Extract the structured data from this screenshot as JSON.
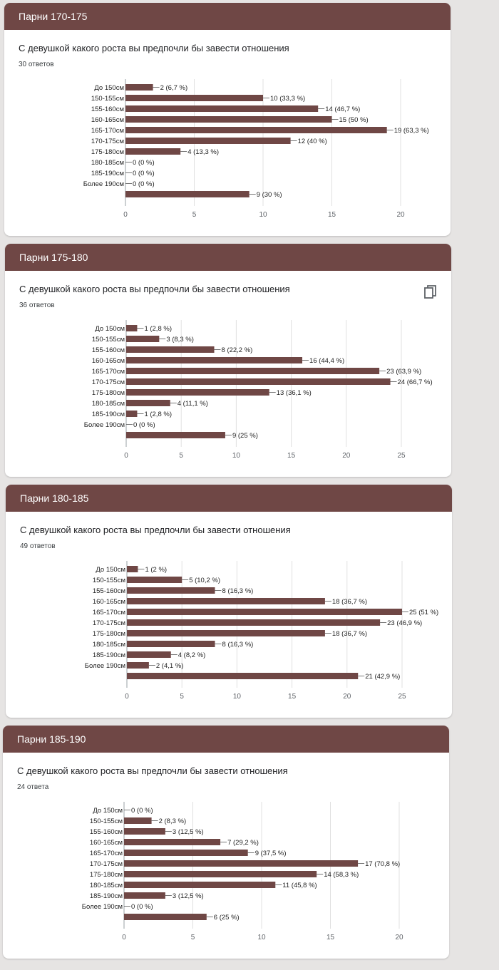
{
  "colors": {
    "header": "#6f4745",
    "bar": "#6f4745",
    "grid": "#e0e0e0",
    "axis": "#5f6368"
  },
  "charts": [
    {
      "header": "Парни 170-175",
      "question": "С девушкой какого роста вы предпочли бы завести отношения",
      "responses": "30 ответов"
    },
    {
      "header": "Парни 175-180",
      "question": "С девушкой какого роста вы предпочли бы завести отношения",
      "responses": "36 ответов",
      "copy_icon": "copy-icon"
    },
    {
      "header": "Парни 180-185",
      "question": "С девушкой какого роста вы предпочли бы завести отношения",
      "responses": "49 ответов"
    },
    {
      "header": "Парни 185-190",
      "question": "С девушкой какого роста вы предпочли бы завести отношения",
      "responses": "24 ответа"
    }
  ],
  "chart_data": [
    {
      "type": "bar",
      "orientation": "horizontal",
      "categories": [
        "До 150см",
        "150-155см",
        "155-160см",
        "160-165см",
        "165-170см",
        "170-175см",
        "175-180см",
        "180-185см",
        "185-190см",
        "Более 190см",
        ""
      ],
      "values": [
        2,
        10,
        14,
        15,
        19,
        12,
        4,
        0,
        0,
        0,
        9
      ],
      "value_labels": [
        "2 (6,7 %)",
        "10 (33,3 %)",
        "14 (46,7 %)",
        "15 (50 %)",
        "19 (63,3 %)",
        "12 (40 %)",
        "4 (13,3 %)",
        "0 (0 %)",
        "0 (0 %)",
        "0 (0 %)",
        "9 (30 %)"
      ],
      "xlim": [
        0,
        20
      ],
      "ticks": [
        0,
        5,
        10,
        15,
        20
      ],
      "grid": true
    },
    {
      "type": "bar",
      "orientation": "horizontal",
      "categories": [
        "До 150см",
        "150-155см",
        "155-160см",
        "160-165см",
        "165-170см",
        "170-175см",
        "175-180см",
        "180-185см",
        "185-190см",
        "Более 190см",
        ""
      ],
      "values": [
        1,
        3,
        8,
        16,
        23,
        24,
        13,
        4,
        1,
        0,
        9
      ],
      "value_labels": [
        "1 (2,8 %)",
        "3 (8,3 %)",
        "8 (22,2 %)",
        "16 (44,4 %)",
        "23 (63,9 %)",
        "24 (66,7 %)",
        "13 (36,1 %)",
        "4 (11,1 %)",
        "1 (2,8 %)",
        "0 (0 %)",
        "9 (25 %)"
      ],
      "xlim": [
        0,
        25
      ],
      "ticks": [
        0,
        5,
        10,
        15,
        20,
        25
      ],
      "grid": true
    },
    {
      "type": "bar",
      "orientation": "horizontal",
      "categories": [
        "До 150см",
        "150-155см",
        "155-160см",
        "160-165см",
        "165-170см",
        "170-175см",
        "175-180см",
        "180-185см",
        "185-190см",
        "Более 190см",
        ""
      ],
      "values": [
        1,
        5,
        8,
        18,
        25,
        23,
        18,
        8,
        4,
        2,
        21
      ],
      "value_labels": [
        "1 (2 %)",
        "5 (10,2 %)",
        "8 (16,3 %)",
        "18 (36,7 %)",
        "25 (51 %)",
        "23 (46,9 %)",
        "18 (36,7 %)",
        "8 (16,3 %)",
        "4 (8,2 %)",
        "2 (4,1 %)",
        "21 (42,9 %)"
      ],
      "xlim": [
        0,
        25
      ],
      "ticks": [
        0,
        5,
        10,
        15,
        20,
        25
      ],
      "grid": true
    },
    {
      "type": "bar",
      "orientation": "horizontal",
      "categories": [
        "До 150см",
        "150-155см",
        "155-160см",
        "160-165см",
        "165-170см",
        "170-175см",
        "175-180см",
        "180-185см",
        "185-190см",
        "Более 190см",
        ""
      ],
      "values": [
        0,
        2,
        3,
        7,
        9,
        17,
        14,
        11,
        3,
        0,
        6
      ],
      "value_labels": [
        "0 (0 %)",
        "2 (8,3 %)",
        "3 (12,5 %)",
        "7 (29,2 %)",
        "9 (37,5 %)",
        "17 (70,8 %)",
        "14 (58,3 %)",
        "11 (45,8 %)",
        "3 (12,5 %)",
        "0 (0 %)",
        "6 (25 %)"
      ],
      "xlim": [
        0,
        20
      ],
      "ticks": [
        0,
        5,
        10,
        15,
        20
      ],
      "grid": true
    }
  ]
}
